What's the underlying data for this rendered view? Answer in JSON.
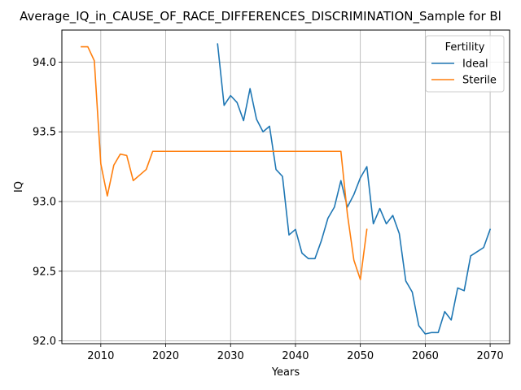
{
  "chart_data": {
    "type": "line",
    "title": "Average_IQ_in_CAUSE_OF_RACE_DIFFERENCES_DISCRIMINATION_Sample for Bl",
    "xlabel": "Years",
    "ylabel": "IQ",
    "xlim": [
      2004,
      2073
    ],
    "ylim": [
      91.98,
      94.23
    ],
    "xticks": [
      2010,
      2020,
      2030,
      2040,
      2050,
      2060,
      2070
    ],
    "yticks": [
      92.0,
      92.5,
      93.0,
      93.5,
      94.0
    ],
    "ytick_labels": [
      "92.0",
      "92.5",
      "93.0",
      "93.5",
      "94.0"
    ],
    "grid": true,
    "legend": {
      "title": "Fertility",
      "placement": "top-right"
    },
    "series": [
      {
        "name": "Ideal",
        "color": "#1f77b4",
        "x": [
          2028,
          2029,
          2030,
          2031,
          2032,
          2033,
          2034,
          2035,
          2036,
          2037,
          2038,
          2039,
          2040,
          2041,
          2042,
          2043,
          2044,
          2045,
          2046,
          2047,
          2048,
          2049,
          2050,
          2051,
          2052,
          2053,
          2054,
          2055,
          2056,
          2057,
          2058,
          2059,
          2060,
          2061,
          2062,
          2063,
          2064,
          2065,
          2066,
          2067,
          2068,
          2069,
          2070
        ],
        "y": [
          94.13,
          93.69,
          93.76,
          93.71,
          93.58,
          93.81,
          93.59,
          93.5,
          93.54,
          93.23,
          93.18,
          92.76,
          92.8,
          92.63,
          92.59,
          92.59,
          92.72,
          92.88,
          92.96,
          93.15,
          92.96,
          93.05,
          93.17,
          93.25,
          92.84,
          92.95,
          92.84,
          92.9,
          92.77,
          92.43,
          92.35,
          92.11,
          92.05,
          92.06,
          92.06,
          92.21,
          92.15,
          92.38,
          92.36,
          92.61,
          92.64,
          92.67,
          92.8
        ]
      },
      {
        "name": "Sterile",
        "color": "#ff7f0e",
        "x": [
          2007,
          2008,
          2009,
          2010,
          2011,
          2012,
          2013,
          2014,
          2015,
          2016,
          2017,
          2018,
          2019,
          2020,
          2021,
          2022,
          2023,
          2024,
          2025,
          2026,
          2027,
          2028,
          2029,
          2030,
          2031,
          2032,
          2033,
          2034,
          2035,
          2036,
          2037,
          2038,
          2039,
          2040,
          2041,
          2042,
          2043,
          2044,
          2045,
          2046,
          2047,
          2048,
          2049,
          2050,
          2051
        ],
        "y": [
          94.11,
          94.11,
          94.01,
          93.27,
          93.04,
          93.26,
          93.34,
          93.33,
          93.15,
          93.19,
          93.23,
          93.36,
          93.36,
          93.36,
          93.36,
          93.36,
          93.36,
          93.36,
          93.36,
          93.36,
          93.36,
          93.36,
          93.36,
          93.36,
          93.36,
          93.36,
          93.36,
          93.36,
          93.36,
          93.36,
          93.36,
          93.36,
          93.36,
          93.36,
          93.36,
          93.36,
          93.36,
          93.36,
          93.36,
          93.36,
          93.36,
          92.91,
          92.58,
          92.44,
          92.8
        ]
      }
    ]
  }
}
